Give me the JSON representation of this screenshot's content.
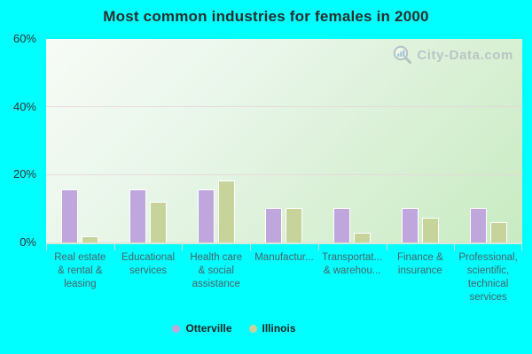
{
  "title": "Most common industries for females in 2000",
  "watermark": "City-Data.com",
  "colors": {
    "background": "#00ffff",
    "otterville": "#bfa6dd",
    "illinois": "#c6d49c",
    "gridline": "#e6d6da",
    "watermark_text": "#aeb7c0"
  },
  "legend": [
    {
      "label": "Otterville",
      "color": "#bfa6dd"
    },
    {
      "label": "Illinois",
      "color": "#c6d49c"
    }
  ],
  "chart_data": {
    "type": "bar",
    "title": "Most common industries for females in 2000",
    "categories": [
      "Real estate & rental & leasing",
      "Educational services",
      "Health care & social assistance",
      "Manufactur...",
      "Transportat... & warehou...",
      "Finance & insurance",
      "Professional, scientific, technical services"
    ],
    "category_display": [
      [
        "Real estate",
        "& rental &",
        "leasing"
      ],
      [
        "Educational",
        "services"
      ],
      [
        "Health care",
        "& social",
        "assistance"
      ],
      [
        "Manufactur..."
      ],
      [
        "Transportat...",
        "& warehou..."
      ],
      [
        "Finance &",
        "insurance"
      ],
      [
        "Professional,",
        "scientific,",
        "technical",
        "services"
      ]
    ],
    "series": [
      {
        "name": "Otterville",
        "color": "#bfa6dd",
        "values": [
          15.6,
          15.6,
          15.6,
          10.3,
          10.3,
          10.3,
          10.3
        ]
      },
      {
        "name": "Illinois",
        "color": "#c6d49c",
        "values": [
          1.7,
          12.0,
          18.2,
          10.3,
          2.9,
          7.4,
          5.9
        ]
      }
    ],
    "xlabel": "",
    "ylabel": "",
    "ylim": [
      0,
      60
    ],
    "yticks": [
      "60%",
      "40%",
      "20%",
      "0%"
    ],
    "grid": "horizontal",
    "legend_position": "bottom"
  }
}
